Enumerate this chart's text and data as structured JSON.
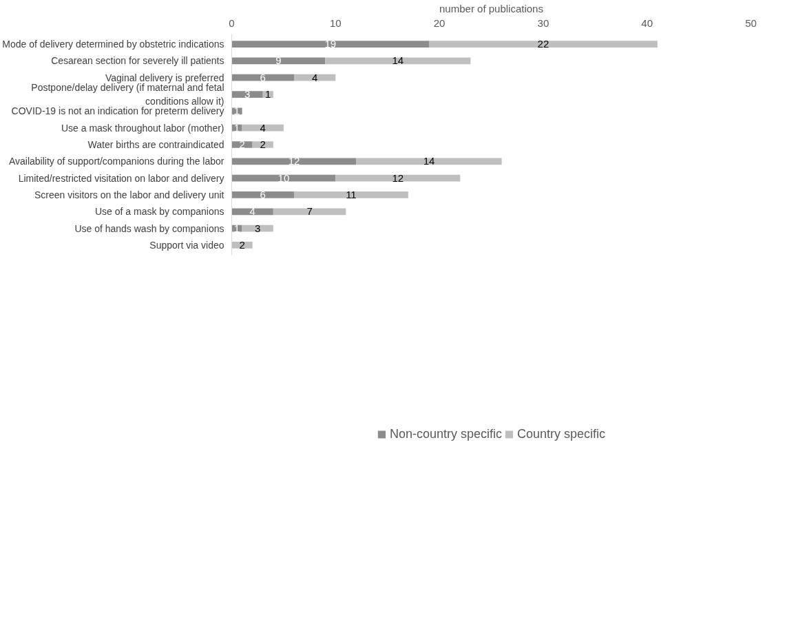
{
  "chart_data": {
    "type": "bar",
    "orientation": "horizontal",
    "stacked": true,
    "xlabel": "number of publications",
    "categories": [
      "Mode of delivery determined by obstetric indications",
      "Cesarean section for severely ill patients",
      "Vaginal delivery is preferred",
      "Postpone/delay delivery (if maternal and fetal conditions allow it)",
      "COVID-19 is not an indication for preterm delivery",
      "Use a mask throughout labor (mother)",
      "Water births are contraindicated",
      "Availability of support/companions during the labor",
      "Limited/restricted visitation on labor and delivery",
      "Screen visitors on the labor and delivery unit",
      "Use of a mask by companions",
      "Use of hands wash by companions",
      "Support via video"
    ],
    "series": [
      {
        "name": "Non-country specific",
        "color": "#8c8c8c",
        "values": [
          19,
          9,
          6,
          3,
          1,
          1,
          2,
          12,
          10,
          6,
          4,
          1,
          null
        ]
      },
      {
        "name": "Country specific",
        "color": "#bfbfbf",
        "values": [
          22,
          14,
          4,
          1,
          null,
          4,
          2,
          14,
          12,
          11,
          7,
          3,
          2
        ]
      }
    ],
    "xlim": [
      0,
      50
    ],
    "xticks": [
      0,
      10,
      20,
      30,
      40,
      50
    ],
    "grid": false,
    "legend": "bottom",
    "data_labels": true
  }
}
